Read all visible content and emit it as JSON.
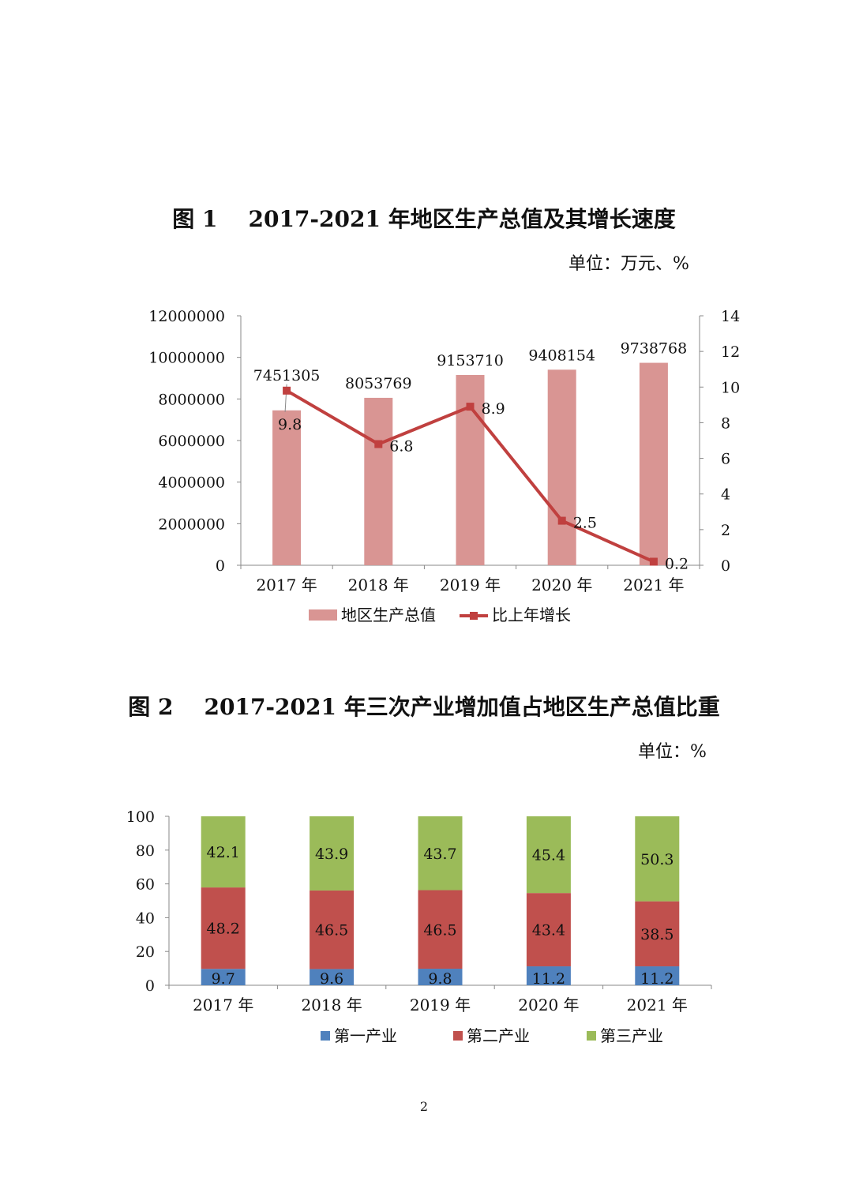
{
  "figure1": {
    "title_prefix": "图 1",
    "title_text": "2017-2021 年地区生产总值及其增长速度",
    "unit": "单位：万元、%"
  },
  "figure2": {
    "title_prefix": "图 2",
    "title_text": "2017-2021 年三次产业增加值占地区生产总值比重",
    "unit": "单位：%"
  },
  "page_number": "2",
  "colors": {
    "gdp_bar": "#d99593",
    "growth_line": "#c0403f",
    "primary": "#4f81bd",
    "secondary": "#c0504d",
    "tertiary": "#9bbb59",
    "axis": "#888888"
  },
  "chart_data": [
    {
      "type": "bar",
      "categories": [
        "2017 年",
        "2018 年",
        "2019 年",
        "2020 年",
        "2021 年"
      ],
      "series": [
        {
          "name": "地区生产总值",
          "type": "bar",
          "axis": "left",
          "values": [
            7451305,
            8053769,
            9153710,
            9408154,
            9738768
          ]
        },
        {
          "name": "比上年增长",
          "type": "line",
          "axis": "right",
          "values": [
            9.8,
            6.8,
            8.9,
            2.5,
            0.2
          ]
        }
      ],
      "y_left": {
        "ylim": [
          0,
          12000000
        ],
        "ticks": [
          0,
          2000000,
          4000000,
          6000000,
          8000000,
          10000000,
          12000000
        ]
      },
      "y_right": {
        "ylim": [
          0,
          14
        ],
        "ticks": [
          0,
          2,
          4,
          6,
          8,
          10,
          12,
          14
        ]
      },
      "legend_position": "bottom",
      "grid": false
    },
    {
      "type": "bar",
      "stacked": true,
      "categories": [
        "2017 年",
        "2018 年",
        "2019 年",
        "2020 年",
        "2021 年"
      ],
      "series": [
        {
          "name": "第一产业",
          "values": [
            9.7,
            9.6,
            9.8,
            11.2,
            11.2
          ]
        },
        {
          "name": "第二产业",
          "values": [
            48.2,
            46.5,
            46.5,
            43.4,
            38.5
          ]
        },
        {
          "name": "第三产业",
          "values": [
            42.1,
            43.9,
            43.7,
            45.4,
            50.3
          ]
        }
      ],
      "ylim": [
        0,
        100
      ],
      "ticks": [
        0,
        20,
        40,
        60,
        80,
        100
      ],
      "legend_position": "bottom",
      "grid": false
    }
  ]
}
